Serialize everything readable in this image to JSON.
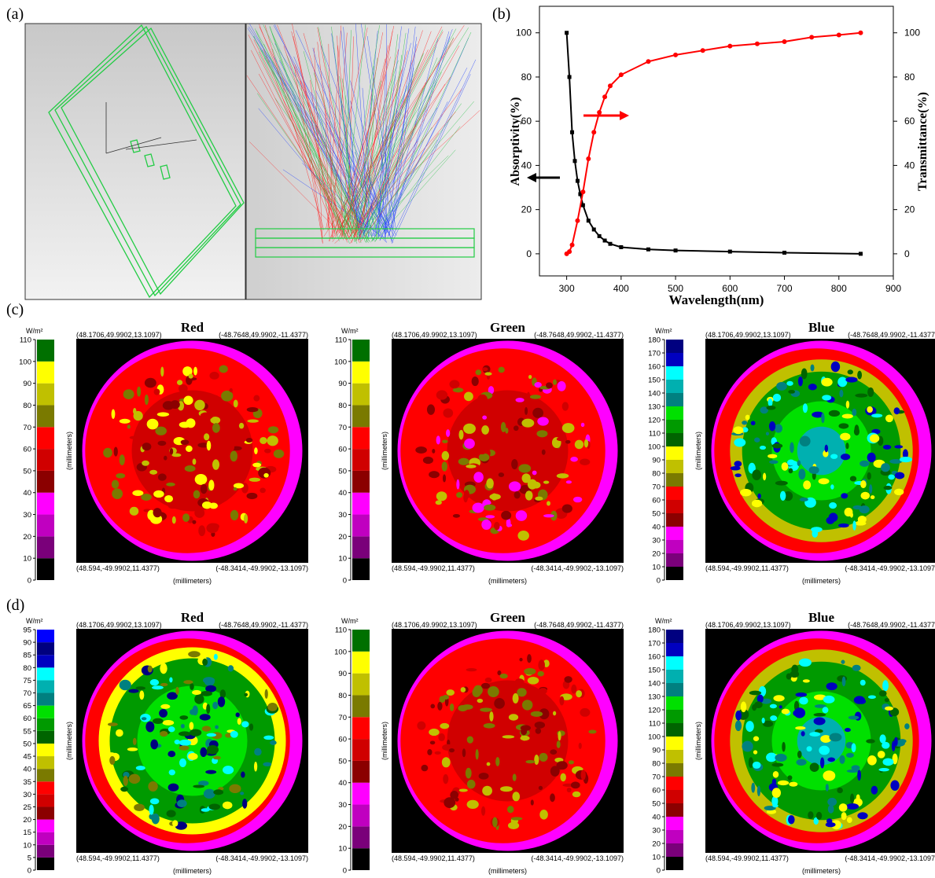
{
  "panel_labels": [
    "(a)",
    "(b)",
    "(c)",
    "(d)"
  ],
  "chart_data": {
    "type": "line",
    "xlabel": "Wavelength(nm)",
    "ylabel": "Absorptivity(%)",
    "y2label": "Transmittance(%)",
    "xlim": [
      250,
      900
    ],
    "xticks": [
      300,
      400,
      500,
      600,
      700,
      800,
      900
    ],
    "ylim": [
      -10,
      112
    ],
    "yticks": [
      0,
      20,
      40,
      60,
      80,
      100
    ],
    "y2lim": [
      -10,
      112
    ],
    "y2ticks": [
      0,
      20,
      40,
      60,
      80,
      100
    ],
    "series": [
      {
        "name": "Absorptivity",
        "color": "#000000",
        "marker": "square",
        "x": [
          300,
          305,
          310,
          315,
          320,
          325,
          330,
          340,
          350,
          360,
          370,
          380,
          400,
          450,
          500,
          600,
          700,
          840
        ],
        "values": [
          100,
          80,
          55,
          42,
          33,
          27,
          22,
          15,
          11,
          8,
          6,
          4.5,
          3,
          2,
          1.5,
          1,
          0.5,
          0
        ]
      },
      {
        "name": "Transmittance",
        "color": "#ff0000",
        "marker": "circle",
        "axis": "y2",
        "x": [
          300,
          305,
          310,
          320,
          330,
          340,
          350,
          360,
          370,
          380,
          400,
          450,
          500,
          550,
          600,
          650,
          700,
          750,
          800,
          840
        ],
        "values": [
          0,
          1,
          4,
          15,
          28,
          43,
          55,
          64,
          71,
          76,
          81,
          87,
          90,
          92,
          94,
          95,
          96,
          98,
          99,
          100
        ]
      }
    ]
  },
  "heatmaps": [
    {
      "title": "Red",
      "unit": "W/m²",
      "x_axis_label": "(millimeters)",
      "y_axis_label": "(millimeters)",
      "corners": [
        "(48.1706,49.9902,13.1097)",
        "(-48.7648,49.9902,-11.4377)",
        "(48.594,-49.9902,11.4377)",
        "(-48.3414,-49.9902,-13.1097)"
      ],
      "ticks": [
        0,
        10,
        20,
        30,
        40,
        50,
        60,
        70,
        80,
        90,
        100,
        110
      ],
      "colors": [
        "#000000",
        "#7a007a",
        "#c000c0",
        "#ff00ff",
        "#8b0000",
        "#d00000",
        "#ff0000",
        "#7a7a00",
        "#c0c000",
        "#ffff00",
        "#007000"
      ]
    },
    {
      "title": "Green",
      "unit": "W/m²",
      "x_axis_label": "(millimeters)",
      "y_axis_label": "(millimeters)",
      "corners": [
        "(48.1706,49.9902,13.1097)",
        "(-48.7648,49.9902,-11.4377)",
        "(48.594,-49.9902,11.4377)",
        "(-48.3414,-49.9902,-13.1097)"
      ],
      "ticks": [
        0,
        10,
        20,
        30,
        40,
        50,
        60,
        70,
        80,
        90,
        100,
        110
      ],
      "colors": [
        "#000000",
        "#7a007a",
        "#c000c0",
        "#ff00ff",
        "#8b0000",
        "#d00000",
        "#ff0000",
        "#7a7a00",
        "#c0c000",
        "#ffff00",
        "#007000"
      ]
    },
    {
      "title": "Blue",
      "unit": "W/m²",
      "x_axis_label": "(millimeters)",
      "y_axis_label": "(millimeters)",
      "corners": [
        "(48.1706,49.9902,13.1097)",
        "(-48.7648,49.9902,-11.4377)",
        "(48.594,-49.9902,11.4377)",
        "(-48.3414,-49.9902,-13.1097)"
      ],
      "ticks": [
        0,
        10,
        20,
        30,
        40,
        50,
        60,
        70,
        80,
        90,
        100,
        110,
        120,
        130,
        140,
        150,
        160,
        170,
        180
      ],
      "colors": [
        "#000000",
        "#7a007a",
        "#c000c0",
        "#ff00ff",
        "#8b0000",
        "#d00000",
        "#ff0000",
        "#7a7a00",
        "#c0c000",
        "#ffff00",
        "#006400",
        "#009a00",
        "#00e000",
        "#008080",
        "#00b0b0",
        "#00ffff",
        "#0000c0",
        "#000080"
      ]
    },
    {
      "title": "Red",
      "unit": "W/m²",
      "x_axis_label": "(millimeters)",
      "y_axis_label": "(millimeters)",
      "corners": [
        "(48.1706,49.9902,13.1097)",
        "(-48.7648,49.9902,-11.4377)",
        "(48.594,-49.9902,11.4377)",
        "(-48.3414,-49.9902,-13.1097)"
      ],
      "ticks": [
        0,
        5,
        10,
        15,
        20,
        25,
        30,
        35,
        40,
        45,
        50,
        55,
        60,
        65,
        70,
        75,
        80,
        85,
        90,
        95
      ],
      "colors": [
        "#000000",
        "#7a007a",
        "#c000c0",
        "#ff00ff",
        "#8b0000",
        "#d00000",
        "#ff0000",
        "#7a7a00",
        "#c0c000",
        "#ffff00",
        "#006400",
        "#009a00",
        "#00e000",
        "#008080",
        "#00b0b0",
        "#00ffff",
        "#0000c0",
        "#000080",
        "#0000ff"
      ]
    },
    {
      "title": "Green",
      "unit": "W/m²",
      "x_axis_label": "(millimeters)",
      "y_axis_label": "(millimeters)",
      "corners": [
        "(48.1706,49.9902,13.1097)",
        "(-48.7648,49.9902,-11.4377)",
        "(48.594,-49.9902,11.4377)",
        "(-48.3414,-49.9902,-13.1097)"
      ],
      "ticks": [
        0,
        10,
        20,
        30,
        40,
        50,
        60,
        70,
        80,
        90,
        100,
        110
      ],
      "colors": [
        "#000000",
        "#7a007a",
        "#c000c0",
        "#ff00ff",
        "#8b0000",
        "#d00000",
        "#ff0000",
        "#7a7a00",
        "#c0c000",
        "#ffff00",
        "#007000"
      ]
    },
    {
      "title": "Blue",
      "unit": "W/m²",
      "x_axis_label": "(millimeters)",
      "y_axis_label": "(millimeters)",
      "corners": [
        "(48.1706,49.9902,13.1097)",
        "(-48.7648,49.9902,-11.4377)",
        "(48.594,-49.9902,11.4377)",
        "(-48.3414,-49.9902,-13.1097)"
      ],
      "ticks": [
        0,
        10,
        20,
        30,
        40,
        50,
        60,
        70,
        80,
        90,
        100,
        110,
        120,
        130,
        140,
        150,
        160,
        170,
        180
      ],
      "colors": [
        "#000000",
        "#7a007a",
        "#c000c0",
        "#ff00ff",
        "#8b0000",
        "#d00000",
        "#ff0000",
        "#7a7a00",
        "#c0c000",
        "#ffff00",
        "#006400",
        "#009a00",
        "#00e000",
        "#008080",
        "#00b0b0",
        "#00ffff",
        "#0000c0",
        "#000080"
      ]
    }
  ]
}
